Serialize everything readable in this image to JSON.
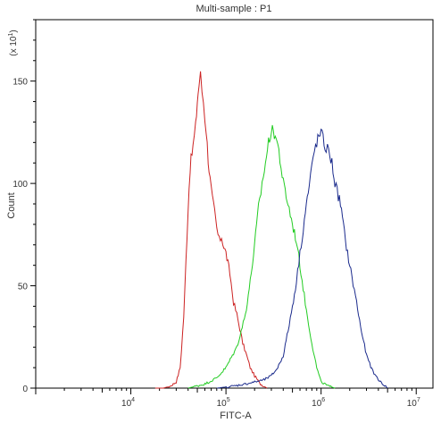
{
  "chart_data": {
    "type": "line",
    "title": "Multi-sample : P1",
    "xlabel": "FITC-A",
    "ylabel": "Count",
    "y_multiplier_label": "(x 10",
    "y_multiplier_exp": "1",
    "x_scale": "log",
    "xlim": [
      1000,
      15000000
    ],
    "ylim": [
      0,
      180
    ],
    "x_ticks": [
      {
        "value": 10000,
        "base": "10",
        "exp": "4"
      },
      {
        "value": 100000,
        "base": "10",
        "exp": "5"
      },
      {
        "value": 1000000,
        "base": "10",
        "exp": "6"
      },
      {
        "value": 10000000,
        "base": "10",
        "exp": "7"
      }
    ],
    "y_ticks": [
      {
        "value": 0,
        "label": "0"
      },
      {
        "value": 50,
        "label": "50"
      },
      {
        "value": 100,
        "label": "100"
      },
      {
        "value": 150,
        "label": "150"
      }
    ],
    "grid": false,
    "legend": "none",
    "series": [
      {
        "color": "#cc2222",
        "x": [
          18000,
          22000,
          26000,
          30000,
          33000,
          36000,
          38000,
          40000,
          42000,
          45000,
          48000,
          50000,
          52000,
          54000,
          56000,
          58000,
          60000,
          62000,
          65000,
          68000,
          72000,
          76000,
          80000,
          85000,
          90000,
          95000,
          100000,
          110000,
          120000,
          130000,
          140000,
          150000,
          165000,
          180000,
          200000,
          230000,
          270000
        ],
        "y": [
          0,
          0,
          1,
          3,
          10,
          35,
          62,
          88,
          108,
          118,
          128,
          140,
          148,
          153,
          145,
          140,
          132,
          126,
          112,
          102,
          92,
          86,
          78,
          72,
          74,
          69,
          66,
          56,
          42,
          36,
          29,
          22,
          16,
          10,
          6,
          2,
          0
        ]
      },
      {
        "color": "#22cc22",
        "x": [
          40000,
          60000,
          80000,
          100000,
          130000,
          160000,
          180000,
          200000,
          220000,
          240000,
          260000,
          280000,
          300000,
          330000,
          360000,
          400000,
          450000,
          500000,
          550000,
          600000,
          700000,
          800000,
          900000,
          1000000,
          1200000,
          1400000
        ],
        "y": [
          0,
          2,
          5,
          10,
          20,
          36,
          52,
          70,
          88,
          100,
          110,
          120,
          126,
          124,
          116,
          100,
          90,
          80,
          72,
          60,
          38,
          22,
          10,
          3,
          1,
          0
        ]
      },
      {
        "color": "#1a2a8c",
        "x": [
          80000,
          120000,
          160000,
          200000,
          250000,
          300000,
          350000,
          400000,
          450000,
          500000,
          550000,
          600000,
          650000,
          700000,
          750000,
          800000,
          850000,
          900000,
          1000000,
          1100000,
          1200000,
          1300000,
          1400000,
          1600000,
          1800000,
          2000000,
          2300000,
          2600000,
          3000000,
          3500000,
          4200000,
          5000000
        ],
        "y": [
          0,
          1,
          2,
          3,
          4,
          6,
          10,
          16,
          28,
          40,
          52,
          66,
          78,
          90,
          98,
          108,
          116,
          120,
          125,
          118,
          116,
          110,
          100,
          90,
          72,
          60,
          45,
          30,
          16,
          8,
          3,
          0
        ]
      }
    ]
  }
}
